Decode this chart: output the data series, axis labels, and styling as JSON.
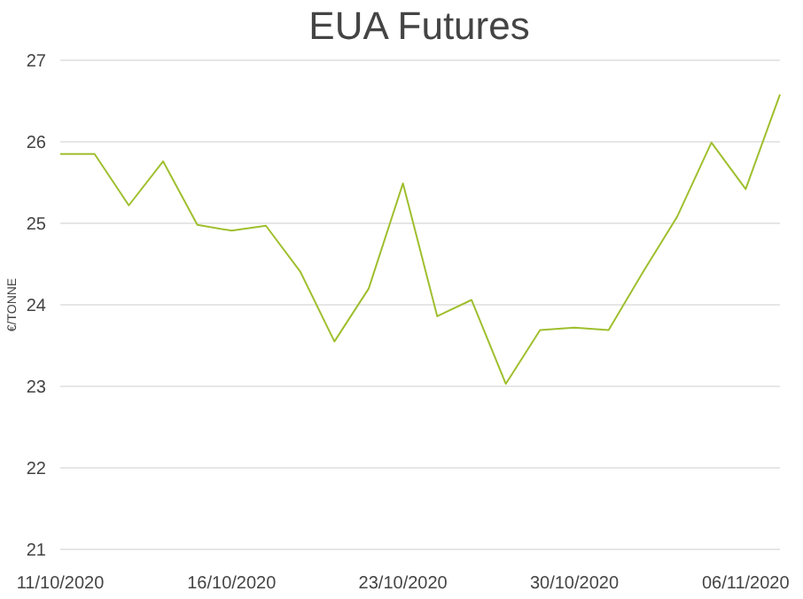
{
  "chart_data": {
    "type": "line",
    "title": "EUA Futures",
    "ylabel": "€/TONNE",
    "categories": [
      "11/10/2020",
      null,
      null,
      null,
      null,
      "16/10/2020",
      null,
      null,
      null,
      null,
      "23/10/2020",
      null,
      null,
      null,
      null,
      "30/10/2020",
      null,
      null,
      null,
      null,
      "06/11/2020",
      null
    ],
    "series": [
      {
        "color": "#9fbf2e",
        "values": [
          25.85,
          25.85,
          25.22,
          25.76,
          24.98,
          24.91,
          24.97,
          24.41,
          23.55,
          24.2,
          25.49,
          23.86,
          24.06,
          23.03,
          23.69,
          23.72,
          23.69,
          24.4,
          25.08,
          25.99,
          25.42,
          26.58
        ]
      }
    ],
    "ylim": [
      21,
      27
    ],
    "yticks": [
      21,
      22,
      23,
      24,
      25,
      26,
      27
    ],
    "grid": "y",
    "marker": "none",
    "line_style": "solid"
  }
}
